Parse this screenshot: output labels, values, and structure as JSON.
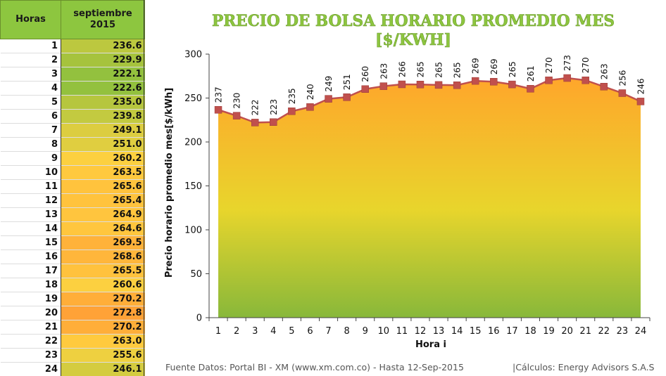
{
  "table": {
    "header_hour": "Horas",
    "header_month_line1": "septiembre",
    "header_month_line2": "2015",
    "rows": [
      {
        "hour": "1",
        "value": "236.6",
        "color": "#bcc83f"
      },
      {
        "hour": "2",
        "value": "229.9",
        "color": "#a6c33d"
      },
      {
        "hour": "3",
        "value": "222.1",
        "color": "#93c13e"
      },
      {
        "hour": "4",
        "value": "222.6",
        "color": "#93c13e"
      },
      {
        "hour": "5",
        "value": "235.0",
        "color": "#b6c63e"
      },
      {
        "hour": "6",
        "value": "239.8",
        "color": "#c3ca40"
      },
      {
        "hour": "7",
        "value": "249.1",
        "color": "#dccd40"
      },
      {
        "hour": "8",
        "value": "251.0",
        "color": "#e0ce40"
      },
      {
        "hour": "9",
        "value": "260.2",
        "color": "#fcd040"
      },
      {
        "hour": "10",
        "value": "263.5",
        "color": "#ffc93e"
      },
      {
        "hour": "11",
        "value": "265.6",
        "color": "#ffc33d"
      },
      {
        "hour": "12",
        "value": "265.4",
        "color": "#ffc33d"
      },
      {
        "hour": "13",
        "value": "264.9",
        "color": "#ffc53e"
      },
      {
        "hour": "14",
        "value": "264.6",
        "color": "#ffc63e"
      },
      {
        "hour": "15",
        "value": "269.5",
        "color": "#ffb23a"
      },
      {
        "hour": "16",
        "value": "268.6",
        "color": "#ffb63b"
      },
      {
        "hour": "17",
        "value": "265.5",
        "color": "#ffc23d"
      },
      {
        "hour": "18",
        "value": "260.6",
        "color": "#fcd040"
      },
      {
        "hour": "19",
        "value": "270.2",
        "color": "#ffae39"
      },
      {
        "hour": "20",
        "value": "272.8",
        "color": "#ffa237"
      },
      {
        "hour": "21",
        "value": "270.2",
        "color": "#ffae39"
      },
      {
        "hour": "22",
        "value": "263.0",
        "color": "#ffca3e"
      },
      {
        "hour": "23",
        "value": "255.6",
        "color": "#eed040"
      },
      {
        "hour": "24",
        "value": "246.1",
        "color": "#d4cc40"
      }
    ]
  },
  "chart_data": {
    "type": "area",
    "title_line1": "PRECIO DE BOLSA HORARIO PROMEDIO MES",
    "title_line2": "[$/KWH]",
    "xlabel": "Hora i",
    "ylabel": "Precio horario promedio mes[$/kWh]",
    "ylim": [
      0,
      300
    ],
    "yticks": [
      0,
      50,
      100,
      150,
      200,
      250,
      300
    ],
    "categories": [
      "1",
      "2",
      "3",
      "4",
      "5",
      "6",
      "7",
      "8",
      "9",
      "10",
      "11",
      "12",
      "13",
      "14",
      "15",
      "16",
      "17",
      "18",
      "19",
      "20",
      "21",
      "22",
      "23",
      "24"
    ],
    "values": [
      236.6,
      229.9,
      222.1,
      222.6,
      235.0,
      239.8,
      249.1,
      251.0,
      260.2,
      263.5,
      265.6,
      265.4,
      264.9,
      264.6,
      269.5,
      268.6,
      265.5,
      260.6,
      270.2,
      272.8,
      270.2,
      263.0,
      255.6,
      246.1
    ],
    "data_labels": [
      "237",
      "230",
      "222",
      "223",
      "235",
      "240",
      "249",
      "251",
      "260",
      "263",
      "266",
      "265",
      "265",
      "265",
      "269",
      "269",
      "265",
      "261",
      "270",
      "273",
      "270",
      "263",
      "256",
      "246"
    ],
    "grid": false,
    "title_color": "#8dc63f",
    "line_color": "#c0504d",
    "marker_color": "#c0504d",
    "fill_top_color": "#ffa62b",
    "fill_mid_color": "#e8d52c",
    "fill_bottom_color": "#88b83a"
  },
  "footer": {
    "left": "Fuente Datos: Portal BI - XM (www.xm.com.co) - Hasta 12-Sep-2015",
    "right": "|Cálculos: Energy Advisors S.A.S"
  }
}
